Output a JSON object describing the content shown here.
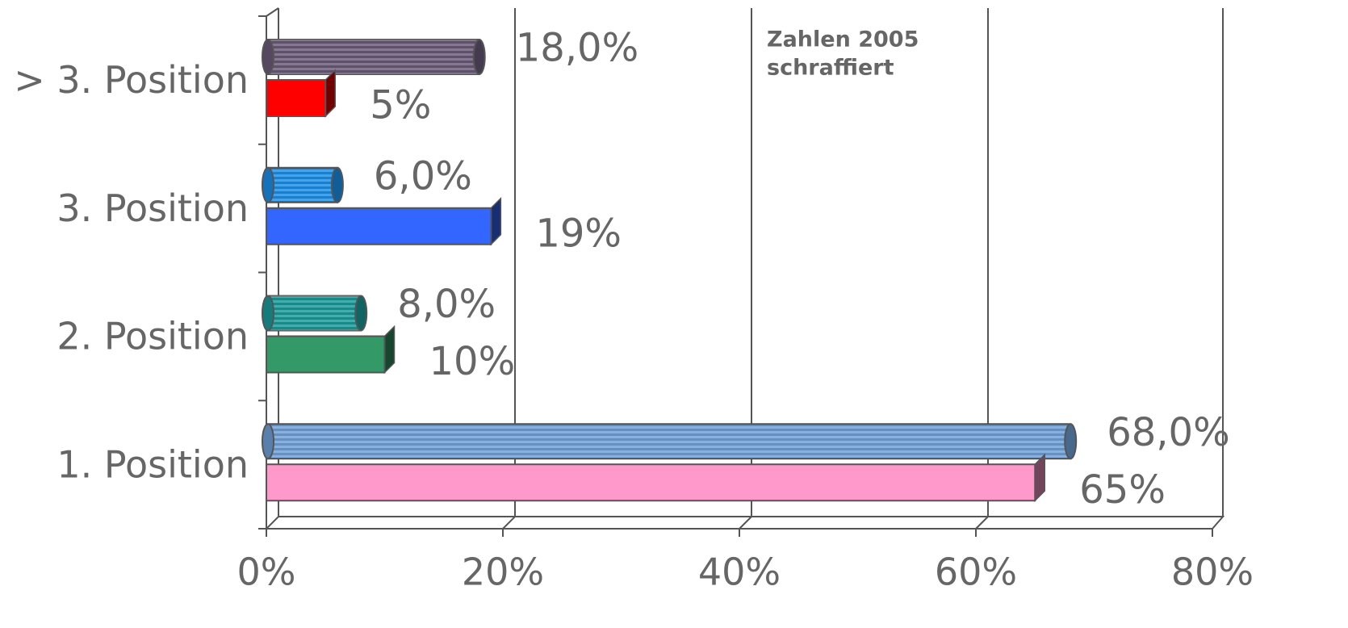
{
  "chart_data": {
    "type": "bar3d",
    "annotation": [
      "Zahlen 2005",
      "schraffiert"
    ],
    "categories": [
      "1. Position",
      "2. Position",
      "3. Position",
      "> 3. Position"
    ],
    "series": [
      {
        "style": "cylinder",
        "colors": [
          "#6fa0d8",
          "#1a9a9a",
          "#1a8fe8",
          "#6a5a78"
        ],
        "values": [
          68,
          8,
          6,
          18
        ],
        "value_labels": [
          "68,0%",
          "8,0%",
          "6,0%",
          "18,0%"
        ]
      },
      {
        "style": "box",
        "colors": [
          "#ff99cc",
          "#339966",
          "#3366ff",
          "#ff0000"
        ],
        "values": [
          65,
          10,
          19,
          5
        ],
        "value_labels": [
          "65%",
          "10%",
          "19%",
          "5%"
        ]
      }
    ],
    "xlim": [
      0,
      80
    ],
    "xticks": [
      {
        "value": 0,
        "label": "0%"
      },
      {
        "value": 20,
        "label": "20%"
      },
      {
        "value": 40,
        "label": "40%"
      },
      {
        "value": 60,
        "label": "60%"
      },
      {
        "value": 80,
        "label": "80%"
      }
    ],
    "grid": true
  }
}
